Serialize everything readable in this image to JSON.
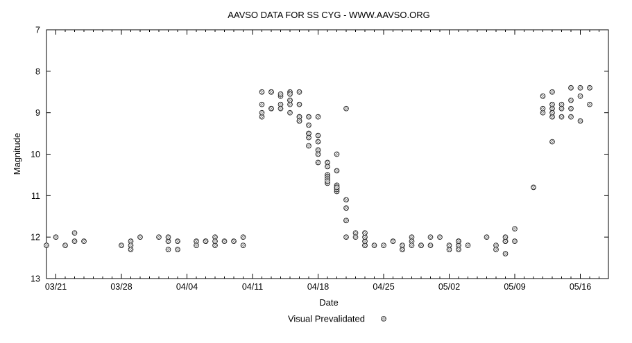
{
  "chart_data": {
    "type": "scatter",
    "title": "AAVSO DATA FOR SS CYG - WWW.AAVSO.ORG",
    "xlabel": "Date",
    "ylabel": "Magnitude",
    "y_reversed": true,
    "ylim": [
      7,
      13
    ],
    "xlim": [
      "2010-03-20",
      "2010-05-19"
    ],
    "x_ticks": [
      {
        "date": "2010-03-21",
        "label": "03/21"
      },
      {
        "date": "2010-03-28",
        "label": "03/28"
      },
      {
        "date": "2010-04-04",
        "label": "04/04"
      },
      {
        "date": "2010-04-11",
        "label": "04/11"
      },
      {
        "date": "2010-04-18",
        "label": "04/18"
      },
      {
        "date": "2010-04-25",
        "label": "04/25"
      },
      {
        "date": "2010-05-02",
        "label": "05/02"
      },
      {
        "date": "2010-05-09",
        "label": "05/09"
      },
      {
        "date": "2010-05-16",
        "label": "05/16"
      }
    ],
    "y_ticks": [
      7,
      8,
      9,
      10,
      11,
      12,
      13
    ],
    "grid": false,
    "legend_position": "bottom-center",
    "series": [
      {
        "name": "Visual Prevalidated",
        "marker": "circle-hatched",
        "color": "#222222",
        "points": [
          [
            "2010-03-20",
            12.2
          ],
          [
            "2010-03-21",
            12.0
          ],
          [
            "2010-03-22",
            12.2
          ],
          [
            "2010-03-23",
            12.1
          ],
          [
            "2010-03-23",
            11.9
          ],
          [
            "2010-03-24",
            12.1
          ],
          [
            "2010-03-28",
            12.2
          ],
          [
            "2010-03-29",
            12.1
          ],
          [
            "2010-03-29",
            12.2
          ],
          [
            "2010-03-29",
            12.3
          ],
          [
            "2010-03-30",
            12.0
          ],
          [
            "2010-04-01",
            12.0
          ],
          [
            "2010-04-02",
            12.1
          ],
          [
            "2010-04-02",
            12.0
          ],
          [
            "2010-04-02",
            12.3
          ],
          [
            "2010-04-03",
            12.1
          ],
          [
            "2010-04-03",
            12.3
          ],
          [
            "2010-04-05",
            12.1
          ],
          [
            "2010-04-05",
            12.2
          ],
          [
            "2010-04-06",
            12.1
          ],
          [
            "2010-04-06",
            12.1
          ],
          [
            "2010-04-07",
            12.0
          ],
          [
            "2010-04-07",
            12.2
          ],
          [
            "2010-04-07",
            12.1
          ],
          [
            "2010-04-08",
            12.1
          ],
          [
            "2010-04-09",
            12.1
          ],
          [
            "2010-04-10",
            12.0
          ],
          [
            "2010-04-10",
            12.2
          ],
          [
            "2010-04-12",
            9.1
          ],
          [
            "2010-04-12",
            9.0
          ],
          [
            "2010-04-12",
            8.8
          ],
          [
            "2010-04-12",
            8.5
          ],
          [
            "2010-04-13",
            8.9
          ],
          [
            "2010-04-13",
            8.5
          ],
          [
            "2010-04-13",
            8.5
          ],
          [
            "2010-04-13",
            8.9
          ],
          [
            "2010-04-14",
            8.6
          ],
          [
            "2010-04-14",
            8.8
          ],
          [
            "2010-04-14",
            8.9
          ],
          [
            "2010-04-14",
            8.55
          ],
          [
            "2010-04-15",
            8.5
          ],
          [
            "2010-04-15",
            8.8
          ],
          [
            "2010-04-15",
            8.7
          ],
          [
            "2010-04-15",
            8.55
          ],
          [
            "2010-04-15",
            9.0
          ],
          [
            "2010-04-15",
            8.7
          ],
          [
            "2010-04-16",
            8.5
          ],
          [
            "2010-04-16",
            8.8
          ],
          [
            "2010-04-16",
            9.1
          ],
          [
            "2010-04-16",
            9.2
          ],
          [
            "2010-04-16",
            9.1
          ],
          [
            "2010-04-16",
            9.2
          ],
          [
            "2010-04-17",
            9.3
          ],
          [
            "2010-04-17",
            9.8
          ],
          [
            "2010-04-17",
            9.5
          ],
          [
            "2010-04-17",
            9.1
          ],
          [
            "2010-04-17",
            9.5
          ],
          [
            "2010-04-17",
            9.6
          ],
          [
            "2010-04-18",
            9.55
          ],
          [
            "2010-04-18",
            9.1
          ],
          [
            "2010-04-18",
            10.2
          ],
          [
            "2010-04-18",
            9.9
          ],
          [
            "2010-04-18",
            10.0
          ],
          [
            "2010-04-18",
            9.7
          ],
          [
            "2010-04-19",
            10.2
          ],
          [
            "2010-04-19",
            10.5
          ],
          [
            "2010-04-19",
            10.5
          ],
          [
            "2010-04-19",
            10.55
          ],
          [
            "2010-04-19",
            10.3
          ],
          [
            "2010-04-19",
            10.6
          ],
          [
            "2010-04-19",
            10.7
          ],
          [
            "2010-04-19",
            10.65
          ],
          [
            "2010-04-20",
            10.9
          ],
          [
            "2010-04-20",
            10.8
          ],
          [
            "2010-04-20",
            10.4
          ],
          [
            "2010-04-20",
            10.0
          ],
          [
            "2010-04-20",
            10.75
          ],
          [
            "2010-04-20",
            10.85
          ],
          [
            "2010-04-20",
            10.8
          ],
          [
            "2010-04-21",
            8.9
          ],
          [
            "2010-04-21",
            11.1
          ],
          [
            "2010-04-21",
            11.3
          ],
          [
            "2010-04-21",
            11.6
          ],
          [
            "2010-04-21",
            11.6
          ],
          [
            "2010-04-21",
            12.0
          ],
          [
            "2010-04-22",
            11.9
          ],
          [
            "2010-04-22",
            12.0
          ],
          [
            "2010-04-23",
            12.2
          ],
          [
            "2010-04-23",
            12.2
          ],
          [
            "2010-04-23",
            12.1
          ],
          [
            "2010-04-23",
            12.0
          ],
          [
            "2010-04-23",
            11.9
          ],
          [
            "2010-04-24",
            12.2
          ],
          [
            "2010-04-25",
            12.2
          ],
          [
            "2010-04-26",
            12.1
          ],
          [
            "2010-04-27",
            12.3
          ],
          [
            "2010-04-27",
            12.2
          ],
          [
            "2010-04-28",
            12.0
          ],
          [
            "2010-04-28",
            12.1
          ],
          [
            "2010-04-28",
            12.2
          ],
          [
            "2010-04-29",
            12.2
          ],
          [
            "2010-04-29",
            12.2
          ],
          [
            "2010-04-30",
            12.0
          ],
          [
            "2010-04-30",
            12.2
          ],
          [
            "2010-05-01",
            12.0
          ],
          [
            "2010-05-02",
            12.3
          ],
          [
            "2010-05-02",
            12.2
          ],
          [
            "2010-05-03",
            12.2
          ],
          [
            "2010-05-03",
            12.3
          ],
          [
            "2010-05-03",
            12.1
          ],
          [
            "2010-05-03",
            12.1
          ],
          [
            "2010-05-04",
            12.2
          ],
          [
            "2010-05-06",
            12.0
          ],
          [
            "2010-05-07",
            12.2
          ],
          [
            "2010-05-07",
            12.3
          ],
          [
            "2010-05-08",
            12.1
          ],
          [
            "2010-05-08",
            12.4
          ],
          [
            "2010-05-08",
            12.1
          ],
          [
            "2010-05-08",
            12.0
          ],
          [
            "2010-05-09",
            12.1
          ],
          [
            "2010-05-09",
            11.8
          ],
          [
            "2010-05-11",
            10.8
          ],
          [
            "2010-05-12",
            9.0
          ],
          [
            "2010-05-12",
            8.6
          ],
          [
            "2010-05-12",
            8.9
          ],
          [
            "2010-05-13",
            9.1
          ],
          [
            "2010-05-13",
            8.9
          ],
          [
            "2010-05-13",
            9.0
          ],
          [
            "2010-05-13",
            9.7
          ],
          [
            "2010-05-13",
            8.8
          ],
          [
            "2010-05-13",
            8.5
          ],
          [
            "2010-05-14",
            9.1
          ],
          [
            "2010-05-14",
            8.8
          ],
          [
            "2010-05-14",
            8.9
          ],
          [
            "2010-05-15",
            9.1
          ],
          [
            "2010-05-15",
            8.4
          ],
          [
            "2010-05-15",
            8.7
          ],
          [
            "2010-05-15",
            8.9
          ],
          [
            "2010-05-16",
            9.2
          ],
          [
            "2010-05-16",
            8.4
          ],
          [
            "2010-05-16",
            8.6
          ],
          [
            "2010-05-17",
            8.8
          ],
          [
            "2010-05-17",
            8.4
          ]
        ]
      }
    ]
  }
}
